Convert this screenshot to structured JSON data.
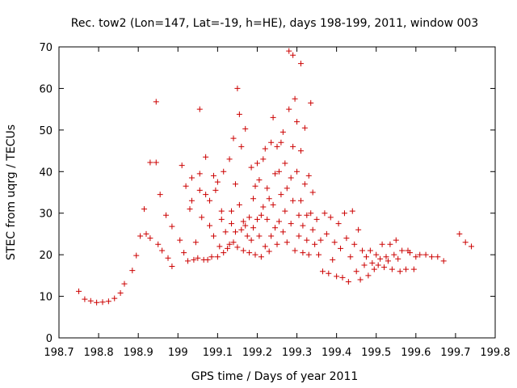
{
  "chart_data": {
    "type": "scatter",
    "title": "Rec. tow2 (Lon=147, Lat=-19, h=HE), days 198-199, 2011, window 003",
    "xlabel": "GPS time / Days of year 2011",
    "ylabel": "STEC from uqrg / TECUs",
    "xlim": [
      198.7,
      199.8
    ],
    "ylim": [
      0,
      70
    ],
    "xticks": [
      "198.7",
      "198.8",
      "198.9",
      "199",
      "199.1",
      "199.2",
      "199.3",
      "199.4",
      "199.5",
      "199.6",
      "199.7",
      "199.8"
    ],
    "yticks": [
      "0",
      "10",
      "20",
      "30",
      "40",
      "50",
      "60",
      "70"
    ],
    "marker": "+",
    "color": "#cc0000",
    "series": [
      {
        "name": "STEC",
        "points": [
          [
            198.75,
            11.2
          ],
          [
            198.765,
            9.3
          ],
          [
            198.78,
            8.9
          ],
          [
            198.795,
            8.5
          ],
          [
            198.81,
            8.6
          ],
          [
            198.825,
            8.8
          ],
          [
            198.84,
            9.5
          ],
          [
            198.855,
            10.8
          ],
          [
            198.865,
            13.0
          ],
          [
            198.885,
            16.2
          ],
          [
            198.895,
            19.8
          ],
          [
            198.905,
            24.5
          ],
          [
            198.92,
            25.0
          ],
          [
            198.915,
            31.0
          ],
          [
            198.93,
            24.0
          ],
          [
            198.93,
            42.2
          ],
          [
            198.945,
            42.2
          ],
          [
            198.945,
            56.8
          ],
          [
            198.95,
            22.5
          ],
          [
            198.955,
            34.5
          ],
          [
            198.96,
            21.0
          ],
          [
            198.97,
            29.5
          ],
          [
            198.975,
            19.2
          ],
          [
            198.985,
            26.8
          ],
          [
            198.985,
            17.2
          ],
          [
            199.005,
            23.5
          ],
          [
            199.01,
            41.5
          ],
          [
            199.015,
            20.5
          ],
          [
            199.02,
            36.5
          ],
          [
            199.025,
            18.5
          ],
          [
            199.03,
            31.0
          ],
          [
            199.035,
            38.5
          ],
          [
            199.035,
            33.0
          ],
          [
            199.04,
            18.8
          ],
          [
            199.045,
            23.0
          ],
          [
            199.05,
            19.2
          ],
          [
            199.055,
            39.5
          ],
          [
            199.055,
            55.0
          ],
          [
            199.055,
            35.5
          ],
          [
            199.06,
            29.0
          ],
          [
            199.065,
            18.8
          ],
          [
            199.07,
            34.5
          ],
          [
            199.07,
            43.5
          ],
          [
            199.075,
            18.8
          ],
          [
            199.08,
            33.0
          ],
          [
            199.08,
            27.0
          ],
          [
            199.085,
            19.5
          ],
          [
            199.09,
            39.0
          ],
          [
            199.09,
            24.5
          ],
          [
            199.095,
            35.5
          ],
          [
            199.1,
            37.5
          ],
          [
            199.1,
            19.5
          ],
          [
            199.105,
            22.0
          ],
          [
            199.11,
            28.5
          ],
          [
            199.11,
            30.5
          ],
          [
            199.115,
            20.5
          ],
          [
            199.115,
            40.0
          ],
          [
            199.12,
            25.5
          ],
          [
            199.125,
            21.5
          ],
          [
            199.13,
            43.0
          ],
          [
            199.13,
            22.5
          ],
          [
            199.135,
            27.5
          ],
          [
            199.135,
            30.5
          ],
          [
            199.14,
            48.0
          ],
          [
            199.14,
            23.0
          ],
          [
            199.145,
            37.0
          ],
          [
            199.145,
            25.5
          ],
          [
            199.15,
            60.0
          ],
          [
            199.15,
            21.8
          ],
          [
            199.155,
            53.8
          ],
          [
            199.155,
            32.0
          ],
          [
            199.16,
            46.0
          ],
          [
            199.16,
            26.0
          ],
          [
            199.165,
            21.0
          ],
          [
            199.165,
            28.0
          ],
          [
            199.17,
            50.3
          ],
          [
            199.17,
            27.0
          ],
          [
            199.175,
            24.5
          ],
          [
            199.18,
            20.5
          ],
          [
            199.18,
            29.0
          ],
          [
            199.185,
            41.0
          ],
          [
            199.185,
            23.5
          ],
          [
            199.19,
            33.5
          ],
          [
            199.19,
            26.5
          ],
          [
            199.195,
            20.0
          ],
          [
            199.195,
            36.5
          ],
          [
            199.2,
            28.5
          ],
          [
            199.2,
            42.0
          ],
          [
            199.205,
            24.5
          ],
          [
            199.205,
            38.0
          ],
          [
            199.21,
            19.5
          ],
          [
            199.21,
            29.5
          ],
          [
            199.215,
            31.5
          ],
          [
            199.215,
            43.0
          ],
          [
            199.22,
            22.0
          ],
          [
            199.22,
            45.5
          ],
          [
            199.225,
            28.5
          ],
          [
            199.225,
            36.0
          ],
          [
            199.23,
            20.8
          ],
          [
            199.23,
            33.5
          ],
          [
            199.235,
            47.0
          ],
          [
            199.235,
            24.5
          ],
          [
            199.24,
            53.0
          ],
          [
            199.24,
            32.0
          ],
          [
            199.245,
            26.5
          ],
          [
            199.245,
            39.5
          ],
          [
            199.25,
            46.0
          ],
          [
            199.25,
            22.5
          ],
          [
            199.255,
            28.0
          ],
          [
            199.255,
            40.0
          ],
          [
            199.26,
            47.0
          ],
          [
            199.26,
            34.5
          ],
          [
            199.265,
            49.5
          ],
          [
            199.265,
            25.5
          ],
          [
            199.27,
            42.0
          ],
          [
            199.27,
            30.5
          ],
          [
            199.275,
            36.0
          ],
          [
            199.275,
            23.0
          ],
          [
            199.28,
            69.0
          ],
          [
            199.28,
            55.0
          ],
          [
            199.285,
            38.5
          ],
          [
            199.285,
            27.5
          ],
          [
            199.29,
            68.0
          ],
          [
            199.29,
            46.0
          ],
          [
            199.29,
            33.0
          ],
          [
            199.295,
            57.5
          ],
          [
            199.295,
            21.0
          ],
          [
            199.3,
            52.0
          ],
          [
            199.3,
            40.0
          ],
          [
            199.305,
            29.5
          ],
          [
            199.305,
            24.5
          ],
          [
            199.31,
            66.0
          ],
          [
            199.31,
            45.0
          ],
          [
            199.31,
            33.0
          ],
          [
            199.315,
            20.5
          ],
          [
            199.315,
            27.0
          ],
          [
            199.32,
            50.5
          ],
          [
            199.32,
            37.0
          ],
          [
            199.325,
            29.5
          ],
          [
            199.325,
            23.5
          ],
          [
            199.33,
            39.0
          ],
          [
            199.33,
            20.0
          ],
          [
            199.335,
            56.5
          ],
          [
            199.335,
            30.0
          ],
          [
            199.34,
            26.0
          ],
          [
            199.34,
            35.0
          ],
          [
            199.345,
            22.5
          ],
          [
            199.35,
            28.5
          ],
          [
            199.355,
            20.0
          ],
          [
            199.36,
            23.5
          ],
          [
            199.365,
            16.0
          ],
          [
            199.37,
            30.0
          ],
          [
            199.375,
            25.0
          ],
          [
            199.38,
            15.5
          ],
          [
            199.385,
            29.0
          ],
          [
            199.39,
            18.8
          ],
          [
            199.395,
            23.0
          ],
          [
            199.4,
            14.8
          ],
          [
            199.405,
            27.5
          ],
          [
            199.41,
            21.5
          ],
          [
            199.415,
            14.5
          ],
          [
            199.42,
            30.0
          ],
          [
            199.425,
            24.0
          ],
          [
            199.43,
            13.5
          ],
          [
            199.435,
            19.5
          ],
          [
            199.44,
            30.5
          ],
          [
            199.445,
            22.5
          ],
          [
            199.45,
            16.0
          ],
          [
            199.455,
            26.0
          ],
          [
            199.46,
            14.0
          ],
          [
            199.465,
            21.0
          ],
          [
            199.47,
            17.5
          ],
          [
            199.475,
            19.5
          ],
          [
            199.48,
            15.0
          ],
          [
            199.485,
            21.0
          ],
          [
            199.49,
            18.0
          ],
          [
            199.495,
            16.5
          ],
          [
            199.5,
            20.0
          ],
          [
            199.505,
            17.5
          ],
          [
            199.51,
            19.0
          ],
          [
            199.515,
            22.5
          ],
          [
            199.52,
            17.0
          ],
          [
            199.525,
            19.5
          ],
          [
            199.53,
            18.5
          ],
          [
            199.535,
            22.5
          ],
          [
            199.54,
            16.5
          ],
          [
            199.545,
            20.0
          ],
          [
            199.55,
            23.5
          ],
          [
            199.555,
            19.0
          ],
          [
            199.56,
            16.0
          ],
          [
            199.565,
            21.0
          ],
          [
            199.575,
            16.5
          ],
          [
            199.58,
            21.0
          ],
          [
            199.585,
            20.5
          ],
          [
            199.595,
            16.5
          ],
          [
            199.6,
            19.5
          ],
          [
            199.61,
            20.0
          ],
          [
            199.625,
            20.0
          ],
          [
            199.64,
            19.5
          ],
          [
            199.655,
            19.5
          ],
          [
            199.67,
            18.5
          ],
          [
            199.71,
            25.0
          ],
          [
            199.725,
            23.0
          ],
          [
            199.74,
            22.0
          ]
        ]
      }
    ]
  }
}
